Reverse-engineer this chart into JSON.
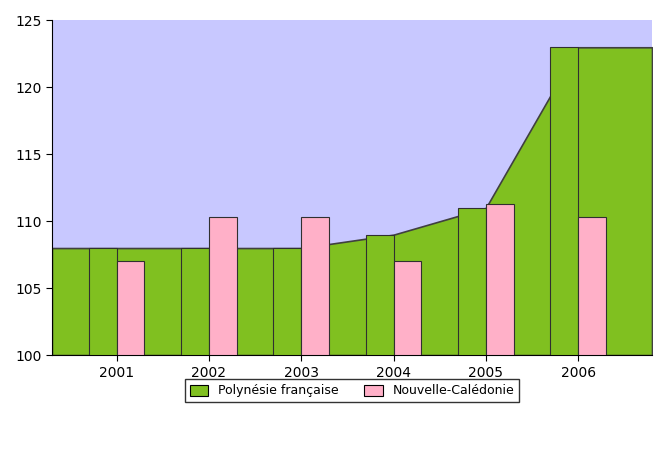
{
  "years": [
    2001,
    2002,
    2003,
    2004,
    2005,
    2006
  ],
  "polynesie_area_y": [
    108,
    108,
    108,
    109,
    111,
    123
  ],
  "polynesie_bars": [
    108,
    108,
    108,
    109,
    111,
    123
  ],
  "noumea_bars": [
    107,
    110.3,
    110.3,
    107,
    111.3,
    110.3
  ],
  "bar_width": 0.3,
  "ylim": [
    100,
    125
  ],
  "yticks": [
    100,
    105,
    110,
    115,
    120,
    125
  ],
  "polynesie_color": "#80C020",
  "noumea_color": "#FFB0C8",
  "bg_area_color": "#C8C8FF",
  "area_edge_color": "#404040",
  "bar_edge_color": "#303030",
  "legend_polynesie": "Polynésie française",
  "legend_noumea": "Nouvelle-Calédonie",
  "xlim_left": 2000.3,
  "xlim_right": 2006.8
}
